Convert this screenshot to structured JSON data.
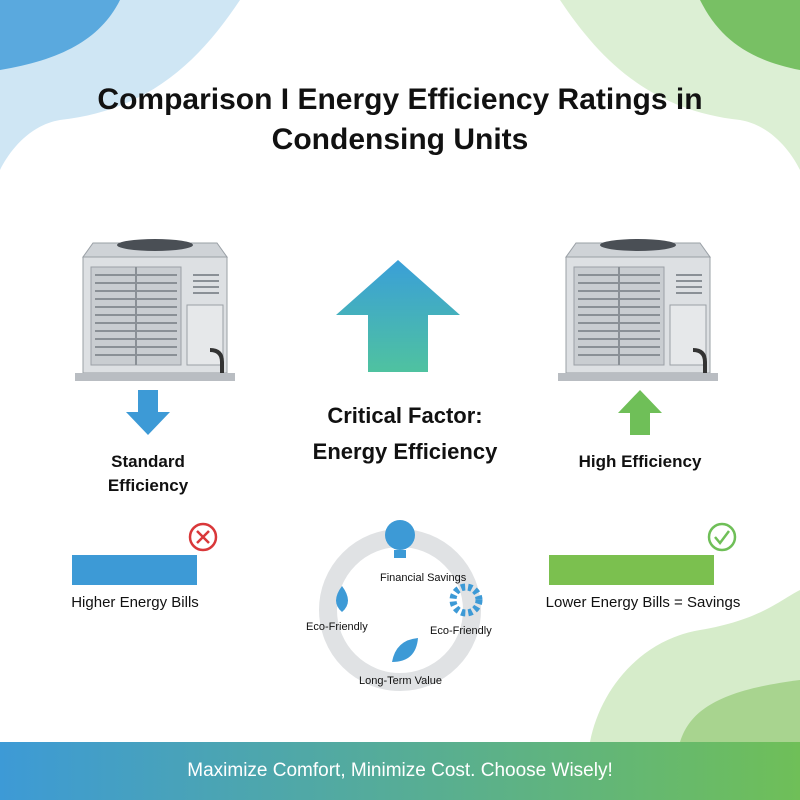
{
  "header": {
    "title": "Comparison I Energy Efficiency Ratings in Condensing Units"
  },
  "standard": {
    "label": "Standard Efficiency",
    "result": "Higher Energy Bills"
  },
  "center": {
    "title": "Critical Factor: Energy Efficiency",
    "benefits": [
      "Financial Savings",
      "Eco-Friendly",
      "Eco-Friendly",
      "Long-Term Value"
    ]
  },
  "high": {
    "label": "High Efficiency",
    "result": "Lower Energy Bills = Savings"
  },
  "footer": {
    "text": "Maximize Comfort, Minimize Cost. Choose Wisely!"
  }
}
